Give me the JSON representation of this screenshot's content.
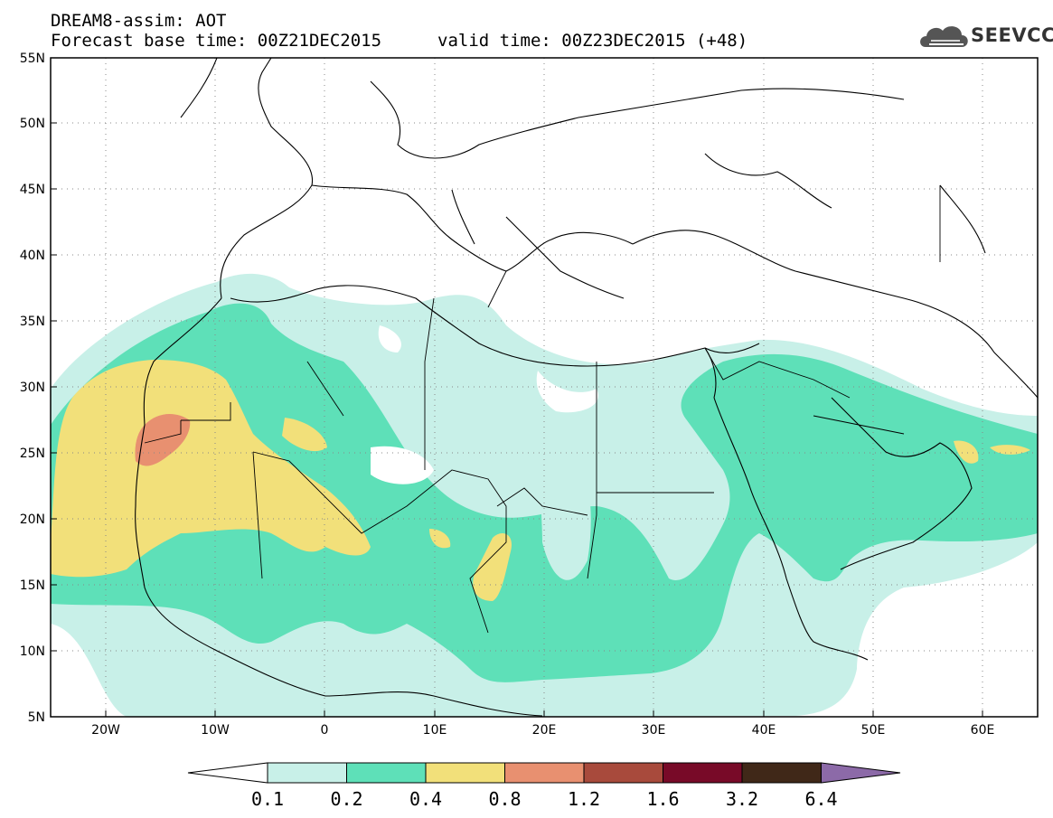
{
  "title": {
    "line1": "DREAM8-assim: AOT",
    "base": "Forecast base time: 00Z21DEC2015",
    "valid": "valid time: 00Z23DEC2015 (+48)"
  },
  "logo": {
    "text": "SEEVCCC",
    "icon": "cloud-logo-icon"
  },
  "map": {
    "projection": "lat-lon",
    "lon_range": [
      -25,
      65
    ],
    "lat_range": [
      5,
      55
    ],
    "grid": true,
    "lat_labels": [
      "55N",
      "50N",
      "45N",
      "40N",
      "35N",
      "30N",
      "25N",
      "20N",
      "15N",
      "10N",
      "5N"
    ],
    "lon_labels": [
      "20W",
      "10W",
      "0",
      "10E",
      "20E",
      "30E",
      "40E",
      "50E",
      "60E"
    ],
    "lat_values": [
      55,
      50,
      45,
      40,
      35,
      30,
      25,
      20,
      15,
      10,
      5
    ],
    "lon_values": [
      -20,
      -10,
      0,
      10,
      20,
      30,
      40,
      50,
      60
    ]
  },
  "colorbar": {
    "levels": [
      "0.1",
      "0.2",
      "0.4",
      "0.8",
      "1.2",
      "1.6",
      "3.2",
      "6.4"
    ],
    "colors": [
      "#c8f0e8",
      "#5ee0b8",
      "#f2e07a",
      "#e89070",
      "#a84a3c",
      "#780a28",
      "#402818",
      "#8c6aa8"
    ],
    "under_color": "#ffffff"
  }
}
